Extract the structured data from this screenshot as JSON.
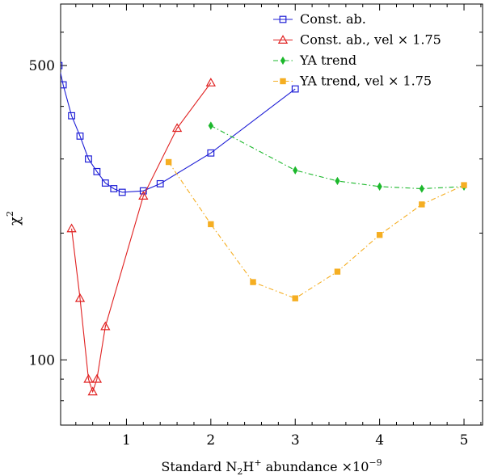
{
  "chart_data": {
    "type": "line",
    "title": "",
    "xlabel": "Standard N₂H⁺ abundance ×10⁻⁹",
    "xlabel_parts": {
      "prefix": "Standard N",
      "sub": "2",
      "mid": "H",
      "sup1": "+",
      "suffix": " abundance ×10",
      "sup2": "−9"
    },
    "ylabel": "χ²",
    "ylabel_parts": {
      "base": "χ",
      "sup": "2"
    },
    "xlim": [
      0.22,
      5.22
    ],
    "ylim": [
      70,
      700
    ],
    "yscale": "log",
    "xticks": [
      1,
      2,
      3,
      4,
      5
    ],
    "xtick_labels": [
      "1",
      "2",
      "3",
      "4",
      "5"
    ],
    "yticks_labeled": [
      100,
      500
    ],
    "ytick_labels": [
      "100",
      "500"
    ],
    "legend_position": "top-right",
    "series": [
      {
        "name": "Const. ab.",
        "color": "#1f1fd6",
        "marker": "square-open",
        "linestyle": "solid",
        "x": [
          0.2,
          0.25,
          0.35,
          0.45,
          0.55,
          0.65,
          0.75,
          0.85,
          0.95,
          1.2,
          1.4,
          2.0,
          3.0
        ],
        "y": [
          500,
          450,
          380,
          340,
          300,
          280,
          263,
          255,
          250,
          252,
          262,
          310,
          440
        ]
      },
      {
        "name": "Const. ab., vel × 1.75",
        "color": "#e02020",
        "marker": "triangle-open",
        "linestyle": "solid",
        "x": [
          0.35,
          0.45,
          0.55,
          0.6,
          0.65,
          0.75,
          1.2,
          1.6,
          2.0
        ],
        "y": [
          205,
          140,
          90,
          84,
          90,
          120,
          245,
          355,
          455
        ]
      },
      {
        "name": "YA trend",
        "color": "#1cb82c",
        "marker": "diamond-filled",
        "linestyle": "dashdot",
        "x": [
          2.0,
          3.0,
          3.5,
          4.0,
          4.5,
          5.0
        ],
        "y": [
          360,
          282,
          266,
          258,
          255,
          258
        ]
      },
      {
        "name": "YA trend, vel × 1.75",
        "color": "#f5ae22",
        "marker": "square-filled",
        "linestyle": "dashdot",
        "x": [
          1.5,
          2.0,
          2.5,
          3.0,
          3.5,
          4.0,
          4.5,
          5.0
        ],
        "y": [
          295,
          210,
          153,
          140,
          162,
          198,
          234,
          260
        ]
      }
    ]
  }
}
